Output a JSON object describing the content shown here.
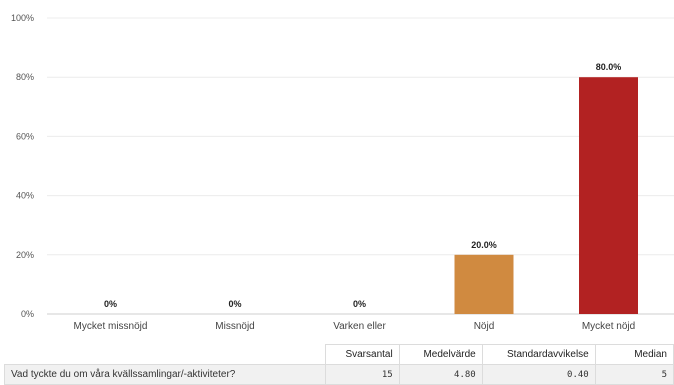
{
  "chart_data": {
    "type": "bar",
    "categories": [
      "Mycket missnöjd",
      "Missnöjd",
      "Varken eller",
      "Nöjd",
      "Mycket nöjd"
    ],
    "values": [
      0,
      0,
      0,
      20.0,
      80.0
    ],
    "data_labels": [
      "0%",
      "0%",
      "0%",
      "20.0%",
      "80.0%"
    ],
    "colors": [
      "#cccccc",
      "#cccccc",
      "#cccccc",
      "#d08a40",
      "#b22222"
    ],
    "ylim": [
      0,
      100
    ],
    "yticks": [
      0,
      20,
      40,
      60,
      80,
      100
    ],
    "ytick_labels": [
      "0%",
      "20%",
      "40%",
      "60%",
      "80%",
      "100%"
    ],
    "grid": true,
    "title": "",
    "xlabel": "",
    "ylabel": ""
  },
  "stats_table": {
    "headers": [
      "Svarsantal",
      "Medelvärde",
      "Standardavvikelse",
      "Median"
    ],
    "question": "Vad tyckte du om våra kvällssamlingar/-aktiviteter?",
    "values": [
      "15",
      "4.80",
      "0.40",
      "5"
    ]
  }
}
